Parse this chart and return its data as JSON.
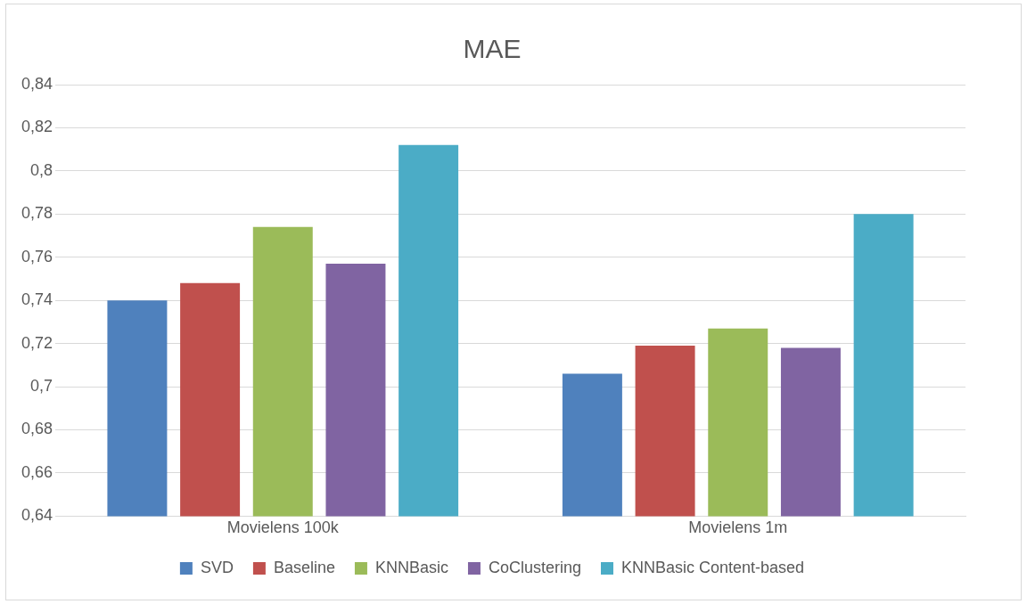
{
  "chart_data": {
    "type": "bar",
    "title": "MAE",
    "categories": [
      "Movielens 100k",
      "Movielens 1m"
    ],
    "series": [
      {
        "name": "SVD",
        "color": "#4f81bd",
        "values": [
          0.74,
          0.706
        ]
      },
      {
        "name": "Baseline",
        "color": "#c0504d",
        "values": [
          0.748,
          0.719
        ]
      },
      {
        "name": "KNNBasic",
        "color": "#9bbb59",
        "values": [
          0.774,
          0.727
        ]
      },
      {
        "name": "CoClustering",
        "color": "#8064a2",
        "values": [
          0.757,
          0.718
        ]
      },
      {
        "name": "KNNBasic Content-based",
        "color": "#4bacc6",
        "values": [
          0.812,
          0.78
        ]
      }
    ],
    "ylim": [
      0.64,
      0.84
    ],
    "yticks": [
      {
        "value": 0.64,
        "label": "0,64"
      },
      {
        "value": 0.66,
        "label": "0,66"
      },
      {
        "value": 0.68,
        "label": "0,68"
      },
      {
        "value": 0.7,
        "label": "0,7"
      },
      {
        "value": 0.72,
        "label": "0,72"
      },
      {
        "value": 0.74,
        "label": "0,74"
      },
      {
        "value": 0.76,
        "label": "0,76"
      },
      {
        "value": 0.78,
        "label": "0,78"
      },
      {
        "value": 0.8,
        "label": "0,8"
      },
      {
        "value": 0.82,
        "label": "0,82"
      },
      {
        "value": 0.84,
        "label": "0,84"
      }
    ],
    "grid": "y",
    "legend": "bottom"
  }
}
